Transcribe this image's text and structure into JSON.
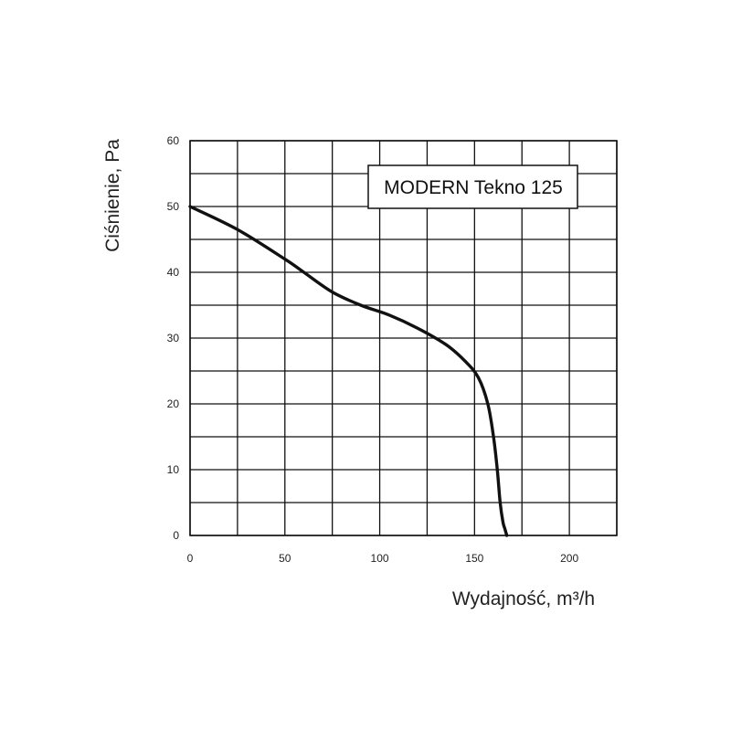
{
  "chart_data": {
    "type": "line",
    "xlabel": "Wydajność, m³/h",
    "ylabel": "Ciśnienie, Pa",
    "xlim": [
      0,
      225
    ],
    "ylim": [
      0,
      60
    ],
    "x_ticks": [
      "0",
      "50",
      "100",
      "150",
      "200"
    ],
    "y_ticks": [
      "0",
      "10",
      "20",
      "30",
      "40",
      "50",
      "60"
    ],
    "grid": true,
    "annotation": "MODERN Tekno 125",
    "series": [
      {
        "x": [
          0,
          25,
          50,
          60,
          75,
          90,
          105,
          120,
          135,
          145,
          152,
          157,
          160,
          162,
          163.5,
          165,
          166,
          167
        ],
        "y": [
          50,
          46.5,
          42,
          40,
          37,
          35,
          33.5,
          31.5,
          29,
          26.5,
          24,
          20,
          15,
          10,
          5,
          2,
          1,
          0
        ]
      }
    ]
  }
}
